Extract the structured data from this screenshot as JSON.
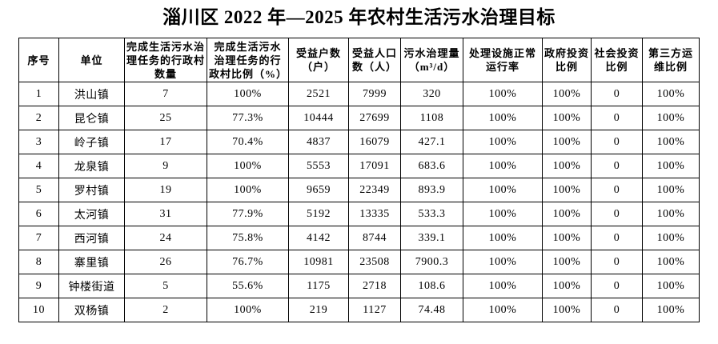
{
  "title": "淄川区 2022 年—2025 年农村生活污水治理目标",
  "table": {
    "columns": [
      "序号",
      "单位",
      "完成生活污水治理任务的行政村数量",
      "完成生活污水治理任务的行政村比例（%）",
      "受益户数（户）",
      "受益人口数（人）",
      "污水治理量（m³/d）",
      "处理设施正常运行率",
      "政府投资比例",
      "社会投资比例",
      "第三方运维比例"
    ],
    "rows": [
      [
        "1",
        "洪山镇",
        "7",
        "100%",
        "2521",
        "7999",
        "320",
        "100%",
        "100%",
        "0",
        "100%"
      ],
      [
        "2",
        "昆仑镇",
        "25",
        "77.3%",
        "10444",
        "27699",
        "1108",
        "100%",
        "100%",
        "0",
        "100%"
      ],
      [
        "3",
        "岭子镇",
        "17",
        "70.4%",
        "4837",
        "16079",
        "427.1",
        "100%",
        "100%",
        "0",
        "100%"
      ],
      [
        "4",
        "龙泉镇",
        "9",
        "100%",
        "5553",
        "17091",
        "683.6",
        "100%",
        "100%",
        "0",
        "100%"
      ],
      [
        "5",
        "罗村镇",
        "19",
        "100%",
        "9659",
        "22349",
        "893.9",
        "100%",
        "100%",
        "0",
        "100%"
      ],
      [
        "6",
        "太河镇",
        "31",
        "77.9%",
        "5192",
        "13335",
        "533.3",
        "100%",
        "100%",
        "0",
        "100%"
      ],
      [
        "7",
        "西河镇",
        "24",
        "75.8%",
        "4142",
        "8744",
        "339.1",
        "100%",
        "100%",
        "0",
        "100%"
      ],
      [
        "8",
        "寨里镇",
        "26",
        "76.7%",
        "10981",
        "23508",
        "7900.3",
        "100%",
        "100%",
        "0",
        "100%"
      ],
      [
        "9",
        "钟楼街道",
        "5",
        "55.6%",
        "1175",
        "2718",
        "108.6",
        "100%",
        "100%",
        "0",
        "100%"
      ],
      [
        "10",
        "双杨镇",
        "2",
        "100%",
        "219",
        "1127",
        "74.48",
        "100%",
        "100%",
        "0",
        "100%"
      ]
    ]
  }
}
